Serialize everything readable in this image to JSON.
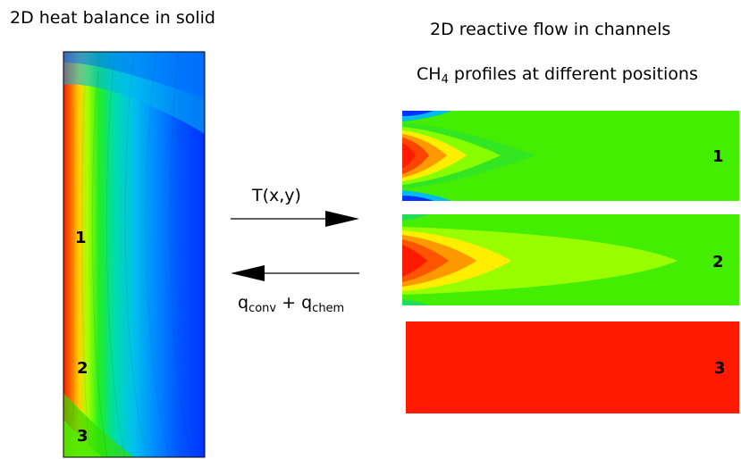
{
  "titles": {
    "left": "2D heat balance in solid",
    "right": "2D reactive flow in channels",
    "subtitle_prefix": "CH",
    "subtitle_sub": "4",
    "subtitle_suffix": " profiles at different positions"
  },
  "arrows": {
    "forward_label": "T(x,y)",
    "back_q": "q",
    "back_sub1": "conv",
    "back_plus": " + ",
    "back_q2": "q",
    "back_sub2": "chem"
  },
  "solid": {
    "positions": [
      "1",
      "2",
      "3"
    ]
  },
  "channels": {
    "labels": [
      "1",
      "2",
      "3"
    ]
  },
  "colors": {
    "hot": "#ff1a00",
    "orange": "#ff8800",
    "yellow": "#ffee00",
    "green": "#44ee00",
    "lime": "#99ff00",
    "cyan": "#00ccdd",
    "blue": "#0033ff",
    "channel3": "#ff1a00"
  }
}
